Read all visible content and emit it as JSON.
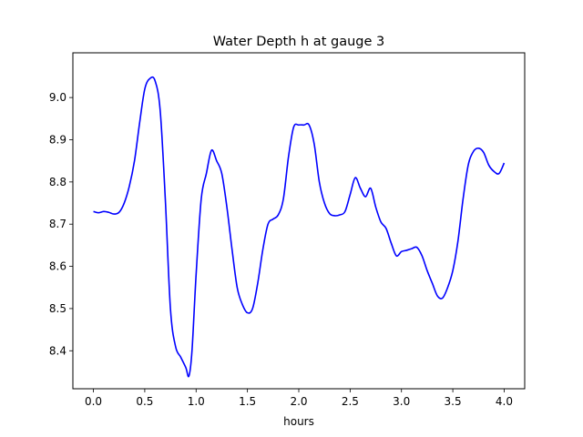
{
  "chart_data": {
    "type": "line",
    "title": "Water Depth h at gauge 3",
    "xlabel": "hours",
    "ylabel": "",
    "xlim": [
      -0.2,
      4.2
    ],
    "ylim": [
      8.31,
      9.106
    ],
    "xticks": [
      0.0,
      0.5,
      1.0,
      1.5,
      2.0,
      2.5,
      3.0,
      3.5,
      4.0
    ],
    "xtick_labels": [
      "0.0",
      "0.5",
      "1.0",
      "1.5",
      "2.0",
      "2.5",
      "3.0",
      "3.5",
      "4.0"
    ],
    "yticks": [
      8.4,
      8.5,
      8.6,
      8.7,
      8.8,
      8.9,
      9.0
    ],
    "ytick_labels": [
      "8.4",
      "8.5",
      "8.6",
      "8.7",
      "8.8",
      "8.9",
      "9.0"
    ],
    "grid": false,
    "series": [
      {
        "color": "#0000ff",
        "x": [
          0.0,
          0.05,
          0.1,
          0.15,
          0.2,
          0.25,
          0.3,
          0.35,
          0.4,
          0.45,
          0.5,
          0.55,
          0.6,
          0.65,
          0.7,
          0.75,
          0.8,
          0.85,
          0.9,
          0.93,
          0.96,
          1.0,
          1.05,
          1.1,
          1.15,
          1.2,
          1.25,
          1.3,
          1.35,
          1.4,
          1.45,
          1.5,
          1.55,
          1.6,
          1.65,
          1.7,
          1.75,
          1.8,
          1.85,
          1.9,
          1.95,
          2.0,
          2.05,
          2.1,
          2.15,
          2.2,
          2.25,
          2.3,
          2.35,
          2.4,
          2.45,
          2.5,
          2.55,
          2.6,
          2.65,
          2.7,
          2.75,
          2.8,
          2.85,
          2.9,
          2.95,
          3.0,
          3.05,
          3.1,
          3.15,
          3.2,
          3.25,
          3.3,
          3.35,
          3.4,
          3.45,
          3.5,
          3.55,
          3.6,
          3.65,
          3.7,
          3.75,
          3.8,
          3.85,
          3.9,
          3.95,
          4.0
        ],
        "y": [
          8.73,
          8.727,
          8.73,
          8.728,
          8.724,
          8.728,
          8.75,
          8.79,
          8.85,
          8.94,
          9.02,
          9.045,
          9.04,
          8.97,
          8.76,
          8.5,
          8.41,
          8.385,
          8.36,
          8.34,
          8.4,
          8.58,
          8.76,
          8.82,
          8.875,
          8.85,
          8.82,
          8.74,
          8.64,
          8.55,
          8.51,
          8.49,
          8.5,
          8.56,
          8.64,
          8.7,
          8.712,
          8.722,
          8.76,
          8.86,
          8.93,
          8.935,
          8.935,
          8.935,
          8.89,
          8.8,
          8.75,
          8.725,
          8.72,
          8.722,
          8.73,
          8.77,
          8.81,
          8.785,
          8.765,
          8.785,
          8.74,
          8.705,
          8.69,
          8.655,
          8.625,
          8.635,
          8.638,
          8.642,
          8.645,
          8.625,
          8.59,
          8.56,
          8.53,
          8.525,
          8.55,
          8.59,
          8.66,
          8.76,
          8.84,
          8.872,
          8.88,
          8.87,
          8.84,
          8.825,
          8.82,
          8.845
        ]
      }
    ]
  }
}
